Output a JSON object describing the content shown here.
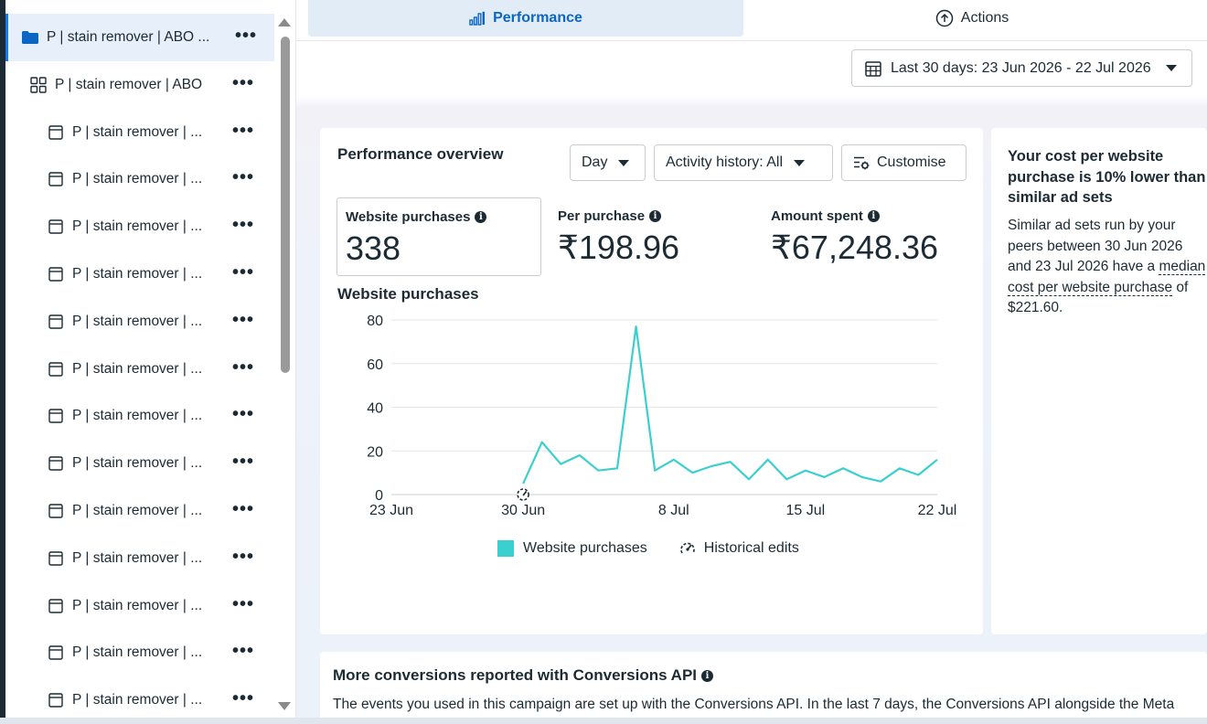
{
  "sidebar": {
    "items": [
      {
        "label": "P | stain remover | ABO ...",
        "icon": "folder-icon",
        "selected": true
      },
      {
        "label": "P | stain remover | ABO",
        "icon": "adset-grid-icon"
      },
      {
        "label": "P | stain remover | ...",
        "icon": "ad-window-icon"
      },
      {
        "label": "P | stain remover | ...",
        "icon": "ad-window-icon"
      },
      {
        "label": "P | stain remover | ...",
        "icon": "ad-window-icon"
      },
      {
        "label": "P | stain remover | ...",
        "icon": "ad-window-icon"
      },
      {
        "label": "P | stain remover | ...",
        "icon": "ad-window-icon"
      },
      {
        "label": "P | stain remover | ...",
        "icon": "ad-window-icon"
      },
      {
        "label": "P | stain remover | ...",
        "icon": "ad-window-icon"
      },
      {
        "label": "P | stain remover | ...",
        "icon": "ad-window-icon"
      },
      {
        "label": "P | stain remover | ...",
        "icon": "ad-window-icon"
      },
      {
        "label": "P | stain remover | ...",
        "icon": "ad-window-icon"
      },
      {
        "label": "P | stain remover | ...",
        "icon": "ad-window-icon"
      },
      {
        "label": "P | stain remover | ...",
        "icon": "ad-window-icon"
      },
      {
        "label": "P | stain remover | ...",
        "icon": "ad-window-icon"
      }
    ],
    "more_glyph": "•••"
  },
  "tabs": {
    "performance": "Performance",
    "actions": "Actions"
  },
  "date_range": "Last 30 days: 23 Jun 2026 - 22 Jul 2026",
  "overview": {
    "title": "Performance overview",
    "day_label": "Day",
    "activity_label": "Activity history: All",
    "customise_label": "Customise",
    "metrics": [
      {
        "label": "Website purchases",
        "value": "338"
      },
      {
        "label": "Per purchase",
        "value": "₹198.96"
      },
      {
        "label": "Amount spent",
        "value": "₹67,248.36"
      }
    ],
    "chart_title": "Website purchases",
    "legend_series": "Website purchases",
    "legend_edits": "Historical edits"
  },
  "chart_data": {
    "type": "line",
    "title": "Website purchases",
    "xlabel": "",
    "ylabel": "",
    "x_ticks": [
      "23 Jun",
      "30 Jun",
      "8 Jul",
      "15 Jul",
      "22 Jul"
    ],
    "y_ticks": [
      0,
      20,
      40,
      60,
      80
    ],
    "ylim": [
      0,
      80
    ],
    "grid": true,
    "legend_placement": "bottom",
    "series": [
      {
        "name": "Website purchases",
        "color": "#3ccfcf",
        "x": [
          "30 Jun",
          "1 Jul",
          "2 Jul",
          "3 Jul",
          "4 Jul",
          "5 Jul",
          "6 Jul",
          "7 Jul",
          "8 Jul",
          "9 Jul",
          "10 Jul",
          "11 Jul",
          "12 Jul",
          "13 Jul",
          "14 Jul",
          "15 Jul",
          "16 Jul",
          "17 Jul",
          "18 Jul",
          "19 Jul",
          "20 Jul",
          "21 Jul",
          "22 Jul"
        ],
        "values": [
          5,
          24,
          14,
          18,
          11,
          12,
          77,
          11,
          16,
          10,
          13,
          15,
          7,
          16,
          7,
          11,
          8,
          12,
          8,
          6,
          12,
          9,
          16
        ]
      }
    ],
    "historical_edits": [
      "30 Jun"
    ]
  },
  "insight": {
    "title": "Your cost per website purchase is 10% lower than similar ad sets",
    "body_prefix": "Similar ad sets run by your peers between 30 Jun 2026 and 23 Jul 2026 have a ",
    "body_link": "median cost per website purchase",
    "body_suffix": " of $221.60."
  },
  "capi": {
    "title": "More conversions reported with Conversions API",
    "body": "The events you used in this campaign are set up with the Conversions API. In the last 7 days, the Conversions API alongside the Meta"
  }
}
